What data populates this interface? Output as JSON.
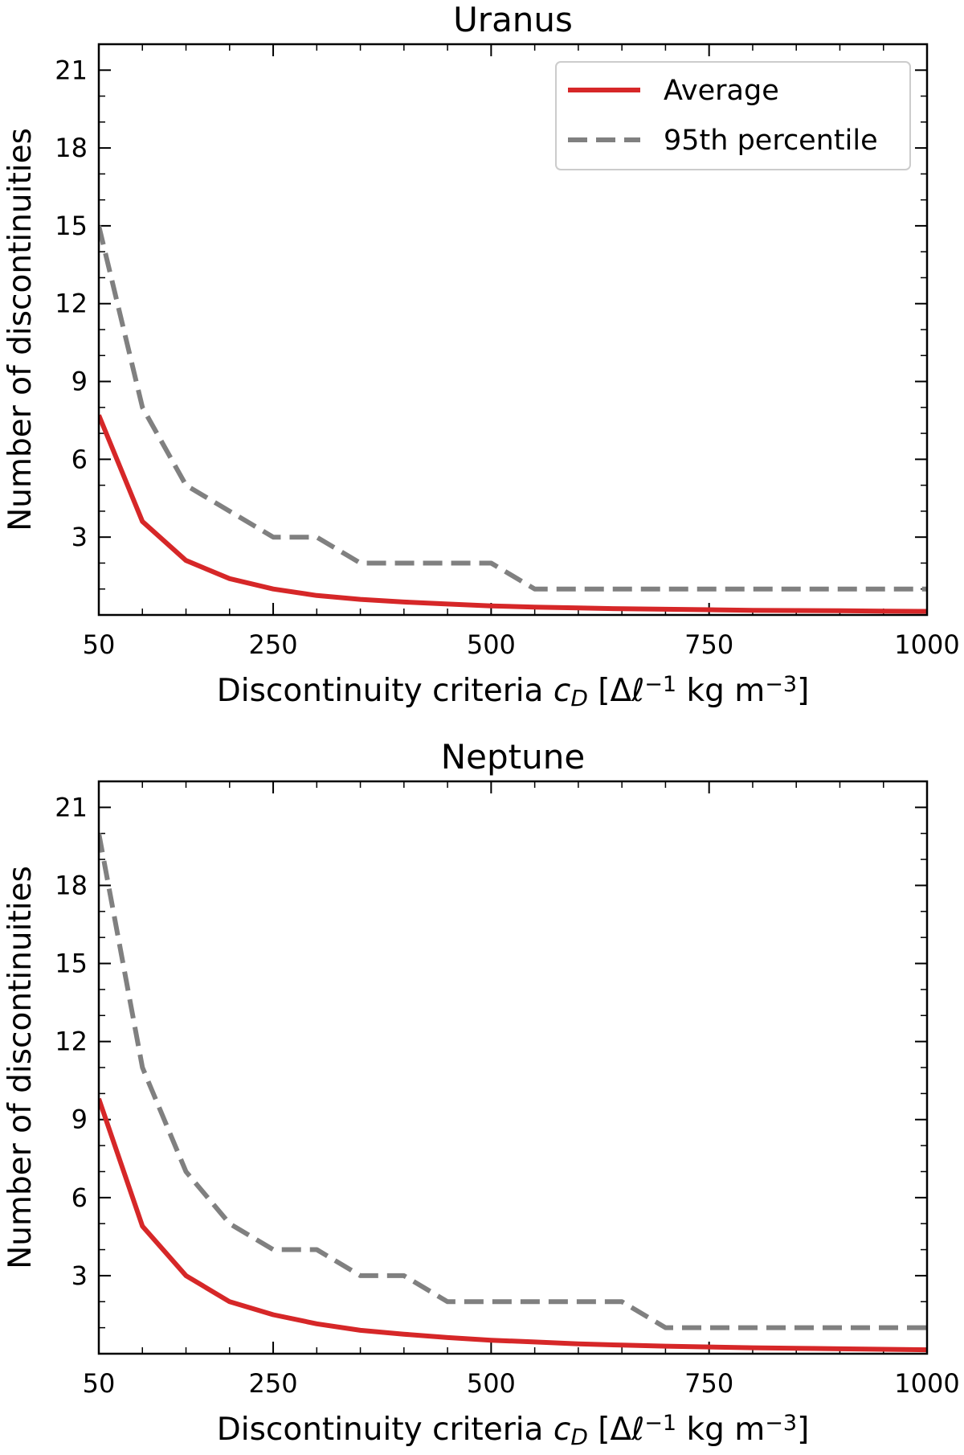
{
  "chart_data": [
    {
      "type": "line",
      "title": "Uranus",
      "xlabel": "Discontinuity criteria c_D [Δℓ⁻¹ kg m⁻³]",
      "ylabel": "Number of discontinuities",
      "xlim": [
        50,
        1000
      ],
      "ylim": [
        0,
        22
      ],
      "xticks": [
        50,
        250,
        500,
        750,
        1000
      ],
      "yticks": [
        3,
        6,
        9,
        12,
        15,
        18,
        21
      ],
      "legend": {
        "position": "top-right"
      },
      "series": [
        {
          "name": "Average",
          "color": "#d62728",
          "style": "solid",
          "x": [
            50,
            100,
            150,
            200,
            250,
            300,
            350,
            400,
            450,
            500,
            550,
            600,
            650,
            700,
            750,
            800,
            850,
            900,
            950,
            1000
          ],
          "y": [
            7.7,
            3.6,
            2.1,
            1.4,
            1.0,
            0.75,
            0.6,
            0.5,
            0.42,
            0.35,
            0.3,
            0.27,
            0.24,
            0.22,
            0.2,
            0.18,
            0.17,
            0.16,
            0.15,
            0.14
          ]
        },
        {
          "name": "95th percentile",
          "color": "#808080",
          "style": "dashed",
          "x": [
            50,
            100,
            150,
            200,
            250,
            300,
            350,
            400,
            450,
            500,
            550,
            600,
            650,
            700,
            750,
            800,
            850,
            900,
            950,
            1000
          ],
          "y": [
            15,
            8,
            5,
            4,
            3,
            3,
            2,
            2,
            2,
            2,
            1,
            1,
            1,
            1,
            1,
            1,
            1,
            1,
            1,
            1
          ]
        }
      ]
    },
    {
      "type": "line",
      "title": "Neptune",
      "xlabel": "Discontinuity criteria c_D [Δℓ⁻¹ kg m⁻³]",
      "ylabel": "Number of discontinuities",
      "xlim": [
        50,
        1000
      ],
      "ylim": [
        0,
        22
      ],
      "xticks": [
        50,
        250,
        500,
        750,
        1000
      ],
      "yticks": [
        3,
        6,
        9,
        12,
        15,
        18,
        21
      ],
      "series": [
        {
          "name": "Average",
          "color": "#d62728",
          "style": "solid",
          "x": [
            50,
            100,
            150,
            200,
            250,
            300,
            350,
            400,
            450,
            500,
            550,
            600,
            650,
            700,
            750,
            800,
            850,
            900,
            950,
            1000
          ],
          "y": [
            9.8,
            4.9,
            3.0,
            2.0,
            1.5,
            1.15,
            0.9,
            0.75,
            0.62,
            0.52,
            0.45,
            0.38,
            0.33,
            0.29,
            0.26,
            0.23,
            0.21,
            0.19,
            0.17,
            0.15
          ]
        },
        {
          "name": "95th percentile",
          "color": "#808080",
          "style": "dashed",
          "x": [
            50,
            100,
            150,
            200,
            250,
            300,
            350,
            400,
            450,
            500,
            550,
            600,
            650,
            700,
            750,
            800,
            850,
            900,
            950,
            1000
          ],
          "y": [
            20,
            11,
            7,
            5,
            4,
            4,
            3,
            3,
            2,
            2,
            2,
            2,
            2,
            1,
            1,
            1,
            1,
            1,
            1,
            1
          ]
        }
      ]
    }
  ]
}
